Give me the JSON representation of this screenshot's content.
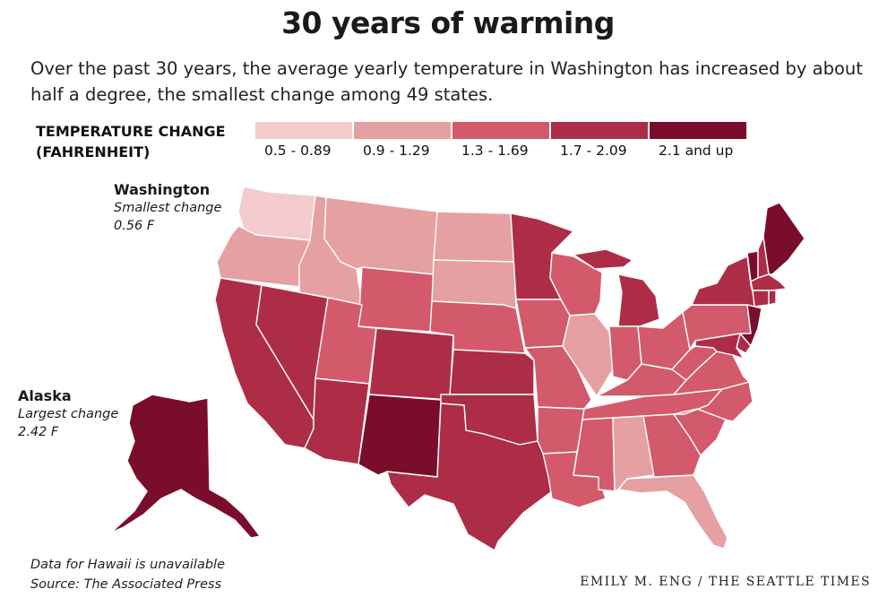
{
  "title": "30 years of warming",
  "subtitle": "Over the past 30 years, the average yearly temperature in Washington has increased by about half a degree, the smallest change among 49 states.",
  "legend": {
    "title_line1": "TEMPERATURE CHANGE",
    "title_line2": "(FAHRENHEIT)",
    "bins": [
      {
        "label": "0.5 - 0.89",
        "color": "#f4cbcd"
      },
      {
        "label": "0.9 - 1.29",
        "color": "#e5a0a2"
      },
      {
        "label": "1.3 - 1.69",
        "color": "#d35a6b"
      },
      {
        "label": "1.7 - 2.09",
        "color": "#ad2d47"
      },
      {
        "label": "2.1 and up",
        "color": "#7a0d2b"
      }
    ]
  },
  "callouts": {
    "washington": {
      "name": "Washington",
      "desc": "Smallest change",
      "value": "0.56 F"
    },
    "alaska": {
      "name": "Alaska",
      "desc": "Largest change",
      "value": "2.42 F"
    }
  },
  "notes": {
    "hawaii": "Data for Hawaii is unavailable",
    "source": "Source: The Associated Press"
  },
  "credit": "EMILY M. ENG / THE SEATTLE TIMES",
  "states": [
    {
      "abbr": "WA",
      "bin": 0
    },
    {
      "abbr": "OR",
      "bin": 1
    },
    {
      "abbr": "CA",
      "bin": 3
    },
    {
      "abbr": "NV",
      "bin": 3
    },
    {
      "abbr": "ID",
      "bin": 1
    },
    {
      "abbr": "MT",
      "bin": 1
    },
    {
      "abbr": "WY",
      "bin": 2
    },
    {
      "abbr": "UT",
      "bin": 2
    },
    {
      "abbr": "AZ",
      "bin": 3
    },
    {
      "abbr": "CO",
      "bin": 3
    },
    {
      "abbr": "NM",
      "bin": 4
    },
    {
      "abbr": "ND",
      "bin": 1
    },
    {
      "abbr": "SD",
      "bin": 1
    },
    {
      "abbr": "NE",
      "bin": 2
    },
    {
      "abbr": "KS",
      "bin": 3
    },
    {
      "abbr": "OK",
      "bin": 3
    },
    {
      "abbr": "TX",
      "bin": 3
    },
    {
      "abbr": "MN",
      "bin": 3
    },
    {
      "abbr": "IA",
      "bin": 2
    },
    {
      "abbr": "MO",
      "bin": 2
    },
    {
      "abbr": "AR",
      "bin": 2
    },
    {
      "abbr": "LA",
      "bin": 2
    },
    {
      "abbr": "WI",
      "bin": 2
    },
    {
      "abbr": "IL",
      "bin": 1
    },
    {
      "abbr": "MI",
      "bin": 3
    },
    {
      "abbr": "IN",
      "bin": 2
    },
    {
      "abbr": "OH",
      "bin": 2
    },
    {
      "abbr": "KY",
      "bin": 2
    },
    {
      "abbr": "TN",
      "bin": 2
    },
    {
      "abbr": "MS",
      "bin": 2
    },
    {
      "abbr": "AL",
      "bin": 1
    },
    {
      "abbr": "GA",
      "bin": 2
    },
    {
      "abbr": "FL",
      "bin": 1
    },
    {
      "abbr": "SC",
      "bin": 2
    },
    {
      "abbr": "NC",
      "bin": 2
    },
    {
      "abbr": "VA",
      "bin": 2
    },
    {
      "abbr": "WV",
      "bin": 2
    },
    {
      "abbr": "PA",
      "bin": 2
    },
    {
      "abbr": "NY",
      "bin": 3
    },
    {
      "abbr": "VT",
      "bin": 4
    },
    {
      "abbr": "NH",
      "bin": 3
    },
    {
      "abbr": "ME",
      "bin": 4
    },
    {
      "abbr": "MA",
      "bin": 3
    },
    {
      "abbr": "CT",
      "bin": 3
    },
    {
      "abbr": "RI",
      "bin": 3
    },
    {
      "abbr": "NJ",
      "bin": 4
    },
    {
      "abbr": "DE",
      "bin": 3
    },
    {
      "abbr": "MD",
      "bin": 3
    },
    {
      "abbr": "AK",
      "bin": 4
    }
  ]
}
